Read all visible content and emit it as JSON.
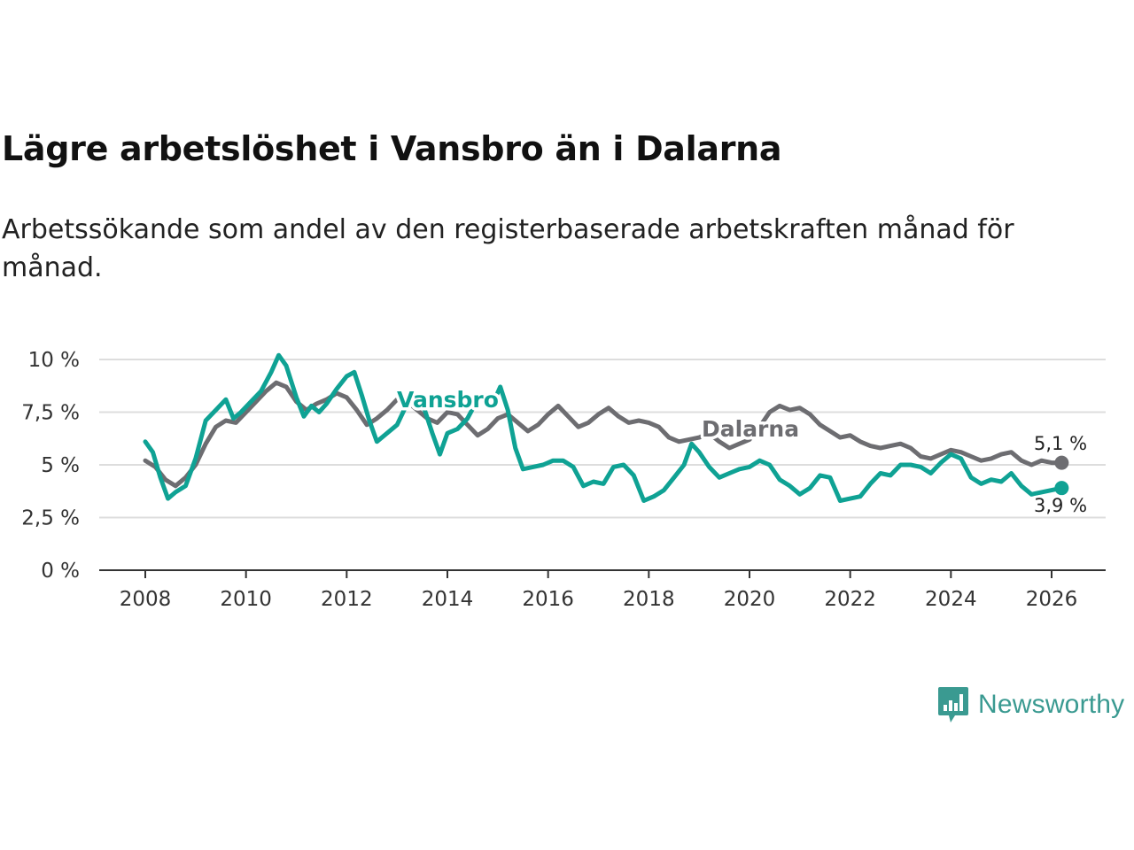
{
  "chart_data": {
    "type": "line",
    "title": "Lägre arbetslöshet i Vansbro än i Dalarna",
    "subtitle": "Arbetssökande som andel av den registerbaserade arbetskraften månad för månad.",
    "xlabel": "",
    "ylabel": "",
    "x_ticks": [
      "2008",
      "2010",
      "2012",
      "2014",
      "2016",
      "2018",
      "2020",
      "2022",
      "2024",
      "2026"
    ],
    "y_ticks": [
      "0 %",
      "2,5 %",
      "5 %",
      "7,5 %",
      "10 %"
    ],
    "xlim": [
      2007.1,
      2027.1
    ],
    "ylim": [
      0,
      10
    ],
    "grid": true,
    "series": [
      {
        "name": "Dalarna",
        "color": "#6d6d71",
        "end_value": 5.1,
        "end_label": "5,1 %",
        "points": [
          [
            2008.0,
            5.2
          ],
          [
            2008.2,
            4.9
          ],
          [
            2008.4,
            4.3
          ],
          [
            2008.6,
            4.0
          ],
          [
            2008.8,
            4.4
          ],
          [
            2009.0,
            5.0
          ],
          [
            2009.2,
            6.0
          ],
          [
            2009.4,
            6.8
          ],
          [
            2009.6,
            7.1
          ],
          [
            2009.8,
            7.0
          ],
          [
            2010.0,
            7.5
          ],
          [
            2010.2,
            8.0
          ],
          [
            2010.4,
            8.5
          ],
          [
            2010.6,
            8.9
          ],
          [
            2010.8,
            8.7
          ],
          [
            2011.0,
            8.0
          ],
          [
            2011.2,
            7.6
          ],
          [
            2011.4,
            7.9
          ],
          [
            2011.6,
            8.1
          ],
          [
            2011.8,
            8.4
          ],
          [
            2012.0,
            8.2
          ],
          [
            2012.2,
            7.6
          ],
          [
            2012.4,
            6.9
          ],
          [
            2012.6,
            7.2
          ],
          [
            2012.8,
            7.6
          ],
          [
            2013.0,
            8.1
          ],
          [
            2013.2,
            8.0
          ],
          [
            2013.4,
            7.6
          ],
          [
            2013.6,
            7.2
          ],
          [
            2013.8,
            7.0
          ],
          [
            2014.0,
            7.5
          ],
          [
            2014.2,
            7.4
          ],
          [
            2014.4,
            6.9
          ],
          [
            2014.6,
            6.4
          ],
          [
            2014.8,
            6.7
          ],
          [
            2015.0,
            7.2
          ],
          [
            2015.2,
            7.4
          ],
          [
            2015.4,
            7.0
          ],
          [
            2015.6,
            6.6
          ],
          [
            2015.8,
            6.9
          ],
          [
            2016.0,
            7.4
          ],
          [
            2016.2,
            7.8
          ],
          [
            2016.4,
            7.3
          ],
          [
            2016.6,
            6.8
          ],
          [
            2016.8,
            7.0
          ],
          [
            2017.0,
            7.4
          ],
          [
            2017.2,
            7.7
          ],
          [
            2017.4,
            7.3
          ],
          [
            2017.6,
            7.0
          ],
          [
            2017.8,
            7.1
          ],
          [
            2018.0,
            7.0
          ],
          [
            2018.2,
            6.8
          ],
          [
            2018.4,
            6.3
          ],
          [
            2018.6,
            6.1
          ],
          [
            2018.8,
            6.2
          ],
          [
            2019.0,
            6.3
          ],
          [
            2019.2,
            6.5
          ],
          [
            2019.4,
            6.1
          ],
          [
            2019.6,
            5.8
          ],
          [
            2019.8,
            6.0
          ],
          [
            2020.0,
            6.2
          ],
          [
            2020.2,
            6.8
          ],
          [
            2020.4,
            7.5
          ],
          [
            2020.6,
            7.8
          ],
          [
            2020.8,
            7.6
          ],
          [
            2021.0,
            7.7
          ],
          [
            2021.2,
            7.4
          ],
          [
            2021.4,
            6.9
          ],
          [
            2021.6,
            6.6
          ],
          [
            2021.8,
            6.3
          ],
          [
            2022.0,
            6.4
          ],
          [
            2022.2,
            6.1
          ],
          [
            2022.4,
            5.9
          ],
          [
            2022.6,
            5.8
          ],
          [
            2022.8,
            5.9
          ],
          [
            2023.0,
            6.0
          ],
          [
            2023.2,
            5.8
          ],
          [
            2023.4,
            5.4
          ],
          [
            2023.6,
            5.3
          ],
          [
            2023.8,
            5.5
          ],
          [
            2024.0,
            5.7
          ],
          [
            2024.2,
            5.6
          ],
          [
            2024.4,
            5.4
          ],
          [
            2024.6,
            5.2
          ],
          [
            2024.8,
            5.3
          ],
          [
            2025.0,
            5.5
          ],
          [
            2025.2,
            5.6
          ],
          [
            2025.4,
            5.2
          ],
          [
            2025.6,
            5.0
          ],
          [
            2025.8,
            5.2
          ],
          [
            2026.0,
            5.1
          ],
          [
            2026.2,
            5.1
          ]
        ]
      },
      {
        "name": "Vansbro",
        "color": "#0fa294",
        "end_value": 3.9,
        "end_label": "3,9 %",
        "points": [
          [
            2008.0,
            6.1
          ],
          [
            2008.15,
            5.6
          ],
          [
            2008.3,
            4.4
          ],
          [
            2008.45,
            3.4
          ],
          [
            2008.6,
            3.7
          ],
          [
            2008.8,
            4.0
          ],
          [
            2009.0,
            5.3
          ],
          [
            2009.2,
            7.1
          ],
          [
            2009.4,
            7.6
          ],
          [
            2009.6,
            8.1
          ],
          [
            2009.75,
            7.2
          ],
          [
            2009.9,
            7.5
          ],
          [
            2010.1,
            8.0
          ],
          [
            2010.3,
            8.5
          ],
          [
            2010.5,
            9.4
          ],
          [
            2010.65,
            10.2
          ],
          [
            2010.8,
            9.7
          ],
          [
            2011.0,
            8.2
          ],
          [
            2011.15,
            7.3
          ],
          [
            2011.3,
            7.8
          ],
          [
            2011.45,
            7.5
          ],
          [
            2011.6,
            7.9
          ],
          [
            2011.8,
            8.6
          ],
          [
            2012.0,
            9.2
          ],
          [
            2012.15,
            9.4
          ],
          [
            2012.3,
            8.3
          ],
          [
            2012.45,
            7.1
          ],
          [
            2012.6,
            6.1
          ],
          [
            2012.8,
            6.5
          ],
          [
            2013.0,
            6.9
          ],
          [
            2013.2,
            7.9
          ],
          [
            2013.4,
            8.0
          ],
          [
            2013.55,
            7.6
          ],
          [
            2013.7,
            6.5
          ],
          [
            2013.85,
            5.5
          ],
          [
            2014.0,
            6.5
          ],
          [
            2014.2,
            6.7
          ],
          [
            2014.4,
            7.2
          ],
          [
            2014.6,
            8.1
          ],
          [
            2014.75,
            8.3
          ],
          [
            2014.9,
            7.9
          ],
          [
            2015.05,
            8.7
          ],
          [
            2015.2,
            7.6
          ],
          [
            2015.35,
            5.8
          ],
          [
            2015.5,
            4.8
          ],
          [
            2015.7,
            4.9
          ],
          [
            2015.9,
            5.0
          ],
          [
            2016.1,
            5.2
          ],
          [
            2016.3,
            5.2
          ],
          [
            2016.5,
            4.9
          ],
          [
            2016.7,
            4.0
          ],
          [
            2016.9,
            4.2
          ],
          [
            2017.1,
            4.1
          ],
          [
            2017.3,
            4.9
          ],
          [
            2017.5,
            5.0
          ],
          [
            2017.7,
            4.5
          ],
          [
            2017.9,
            3.3
          ],
          [
            2018.1,
            3.5
          ],
          [
            2018.3,
            3.8
          ],
          [
            2018.5,
            4.4
          ],
          [
            2018.7,
            5.0
          ],
          [
            2018.85,
            6.0
          ],
          [
            2019.0,
            5.6
          ],
          [
            2019.2,
            4.9
          ],
          [
            2019.4,
            4.4
          ],
          [
            2019.6,
            4.6
          ],
          [
            2019.8,
            4.8
          ],
          [
            2020.0,
            4.9
          ],
          [
            2020.2,
            5.2
          ],
          [
            2020.4,
            5.0
          ],
          [
            2020.6,
            4.3
          ],
          [
            2020.8,
            4.0
          ],
          [
            2021.0,
            3.6
          ],
          [
            2021.2,
            3.9
          ],
          [
            2021.4,
            4.5
          ],
          [
            2021.6,
            4.4
          ],
          [
            2021.8,
            3.3
          ],
          [
            2022.0,
            3.4
          ],
          [
            2022.2,
            3.5
          ],
          [
            2022.4,
            4.1
          ],
          [
            2022.6,
            4.6
          ],
          [
            2022.8,
            4.5
          ],
          [
            2023.0,
            5.0
          ],
          [
            2023.2,
            5.0
          ],
          [
            2023.4,
            4.9
          ],
          [
            2023.6,
            4.6
          ],
          [
            2023.8,
            5.1
          ],
          [
            2024.0,
            5.5
          ],
          [
            2024.2,
            5.3
          ],
          [
            2024.4,
            4.4
          ],
          [
            2024.6,
            4.1
          ],
          [
            2024.8,
            4.3
          ],
          [
            2025.0,
            4.2
          ],
          [
            2025.2,
            4.6
          ],
          [
            2025.4,
            4.0
          ],
          [
            2025.6,
            3.6
          ],
          [
            2025.8,
            3.7
          ],
          [
            2026.0,
            3.8
          ],
          [
            2026.2,
            3.9
          ]
        ]
      }
    ]
  },
  "brand": {
    "name": "Newsworthy"
  }
}
